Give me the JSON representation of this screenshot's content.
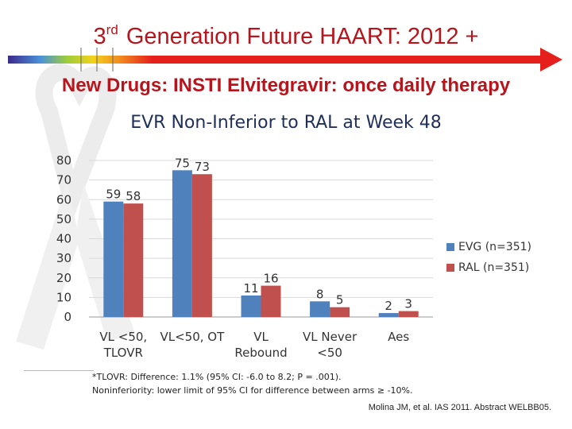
{
  "slide": {
    "title_prefix": "3",
    "title_sup": "rd",
    "title_rest": "Generation Future HAART: 2012 +",
    "subtitle_red": "New Drugs: INSTI Elvitegravir: once daily therapy"
  },
  "chart_data": {
    "type": "bar",
    "title": "EVR Non-Inferior to RAL at Week 48",
    "categories": [
      [
        "VL <50,",
        "TLOVR"
      ],
      [
        "VL<50, OT"
      ],
      [
        "VL",
        "Rebound"
      ],
      [
        "VL Never",
        "<50"
      ],
      [
        "Aes"
      ]
    ],
    "series": [
      {
        "name": "EVG (n=351)",
        "color": "#4f81bd",
        "values": [
          59,
          75,
          11,
          8,
          2
        ]
      },
      {
        "name": "RAL (n=351)",
        "color": "#c0504d",
        "values": [
          58,
          73,
          16,
          5,
          3
        ]
      }
    ],
    "ylim": [
      0,
      80
    ],
    "yticks": [
      0,
      10,
      20,
      30,
      40,
      50,
      60,
      70,
      80
    ],
    "grid": true,
    "legend": "right"
  },
  "footnote": {
    "line1": "*TLOVR: Difference: 1.1% (95% CI: -6.0 to 8.2; P = .001).",
    "line2": "Noninferiority: lower limit of 95% CI for difference between arms ≥ -10%."
  },
  "citation": "Molina JM, et al. IAS 2011. Abstract WELBB05."
}
